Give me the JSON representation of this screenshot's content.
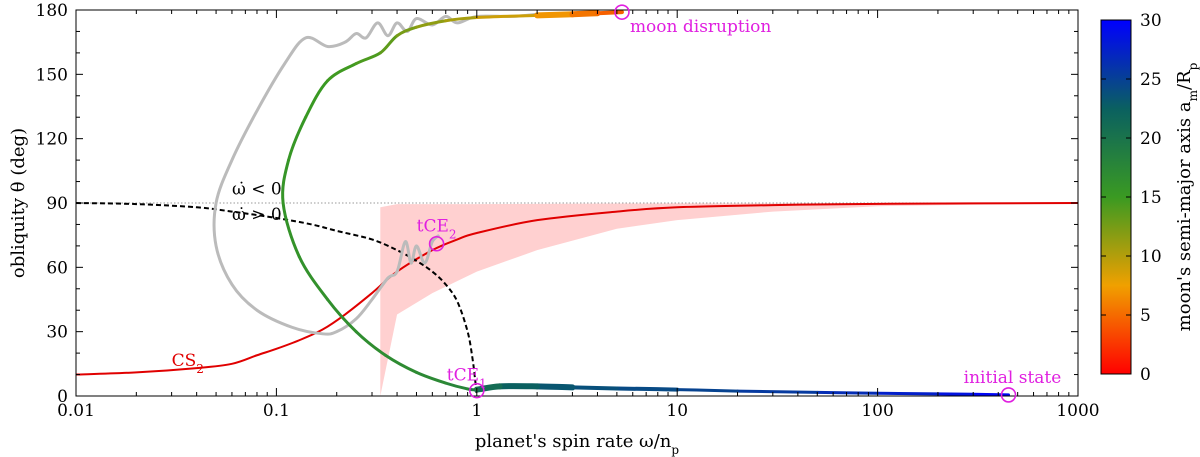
{
  "chart_data": {
    "type": "line",
    "xlabel": "planet's spin rate ω/n",
    "xlabel_sub": "p",
    "ylabel": "obliquity θ (deg)",
    "xscale": "log",
    "xlim": [
      0.01,
      1000
    ],
    "ylim": [
      0,
      180
    ],
    "xticks": [
      {
        "value": 0.01,
        "label": "0.01"
      },
      {
        "value": 0.1,
        "label": "0.1"
      },
      {
        "value": 1,
        "label": "1"
      },
      {
        "value": 10,
        "label": "10"
      },
      {
        "value": 100,
        "label": "100"
      },
      {
        "value": 1000,
        "label": "1000"
      }
    ],
    "yticks": [
      {
        "value": 0,
        "label": "0"
      },
      {
        "value": 30,
        "label": "30"
      },
      {
        "value": 60,
        "label": "60"
      },
      {
        "value": 90,
        "label": "90"
      },
      {
        "value": 120,
        "label": "120"
      },
      {
        "value": 150,
        "label": "150"
      },
      {
        "value": 180,
        "label": "180"
      }
    ],
    "colorbar": {
      "label": "moon's semi-major axis a",
      "label_sub1": "m",
      "label_mid": "/R",
      "label_sub2": "p",
      "range": [
        0,
        30
      ],
      "ticks": [
        {
          "value": 0,
          "label": "0"
        },
        {
          "value": 5,
          "label": "5"
        },
        {
          "value": 10,
          "label": "10"
        },
        {
          "value": 15,
          "label": "15"
        },
        {
          "value": 20,
          "label": "20"
        },
        {
          "value": 25,
          "label": "25"
        },
        {
          "value": 30,
          "label": "30"
        }
      ],
      "stops": [
        {
          "value": 0,
          "color": "#ff0000"
        },
        {
          "value": 7.5,
          "color": "#f0a000"
        },
        {
          "value": 15,
          "color": "#3a9a22"
        },
        {
          "value": 22.5,
          "color": "#0a6060"
        },
        {
          "value": 30,
          "color": "#0000ff"
        }
      ]
    },
    "series": [
      {
        "id": "cs2",
        "color": "#e00000",
        "label": "CS",
        "label_sub": "2",
        "points": [
          [
            0.01,
            10
          ],
          [
            0.02,
            11
          ],
          [
            0.04,
            13
          ],
          [
            0.06,
            15
          ],
          [
            0.08,
            19
          ],
          [
            0.1,
            22
          ],
          [
            0.13,
            26
          ],
          [
            0.17,
            31
          ],
          [
            0.22,
            38
          ],
          [
            0.3,
            48
          ],
          [
            0.4,
            58
          ],
          [
            0.6,
            68
          ],
          [
            0.8,
            73
          ],
          [
            1,
            76
          ],
          [
            2,
            82
          ],
          [
            5,
            86
          ],
          [
            10,
            88
          ],
          [
            30,
            89
          ],
          [
            100,
            89.6
          ],
          [
            1000,
            90
          ]
        ]
      },
      {
        "id": "separatrix",
        "color": "#000000",
        "dashed": true,
        "points": [
          [
            0.01,
            90
          ],
          [
            0.02,
            89.5
          ],
          [
            0.04,
            88
          ],
          [
            0.06,
            86
          ],
          [
            0.1,
            83
          ],
          [
            0.15,
            80
          ],
          [
            0.2,
            77
          ],
          [
            0.3,
            73
          ],
          [
            0.4,
            68
          ],
          [
            0.5,
            63
          ],
          [
            0.6,
            58
          ],
          [
            0.7,
            52
          ],
          [
            0.8,
            44
          ],
          [
            0.9,
            30
          ],
          [
            0.95,
            18
          ],
          [
            0.98,
            8
          ],
          [
            1,
            0
          ]
        ]
      },
      {
        "id": "trajectory-gray",
        "color": "#bbbbbb",
        "points": [
          [
            0.65,
            75
          ],
          [
            0.6,
            72
          ],
          [
            0.55,
            62
          ],
          [
            0.5,
            70
          ],
          [
            0.47,
            62
          ],
          [
            0.44,
            72
          ],
          [
            0.4,
            58
          ],
          [
            0.36,
            55
          ],
          [
            0.3,
            45
          ],
          [
            0.25,
            36
          ],
          [
            0.2,
            30
          ],
          [
            0.17,
            29
          ],
          [
            0.12,
            32
          ],
          [
            0.08,
            40
          ],
          [
            0.06,
            52
          ],
          [
            0.05,
            70
          ],
          [
            0.05,
            90
          ],
          [
            0.06,
            110
          ],
          [
            0.08,
            133
          ],
          [
            0.11,
            155
          ],
          [
            0.14,
            167
          ],
          [
            0.18,
            163
          ],
          [
            0.22,
            165
          ],
          [
            0.25,
            169
          ],
          [
            0.28,
            167
          ],
          [
            0.32,
            174
          ],
          [
            0.36,
            168
          ],
          [
            0.4,
            174
          ],
          [
            0.45,
            170
          ],
          [
            0.5,
            176
          ],
          [
            0.6,
            173
          ],
          [
            0.7,
            177
          ],
          [
            0.8,
            174
          ],
          [
            1,
            177
          ],
          [
            1.5,
            177
          ],
          [
            2,
            178
          ]
        ]
      },
      {
        "id": "trajectory-main",
        "colored_by": "colorbar",
        "points": [
          [
            450,
            0.5,
            30
          ],
          [
            300,
            0.8,
            29
          ],
          [
            200,
            1.0,
            28
          ],
          [
            100,
            1.3,
            27
          ],
          [
            50,
            1.7,
            26
          ],
          [
            20,
            2.3,
            25
          ],
          [
            10,
            3,
            24.5
          ],
          [
            5,
            3.5,
            24
          ],
          [
            3,
            4,
            23.5
          ],
          [
            2,
            4.5,
            23
          ],
          [
            1.3,
            4.5,
            22
          ],
          [
            1,
            3,
            20
          ],
          [
            0.9,
            3.3,
            18
          ],
          [
            0.7,
            6,
            17.5
          ],
          [
            0.5,
            11,
            17
          ],
          [
            0.35,
            19,
            16.8
          ],
          [
            0.25,
            30,
            16.5
          ],
          [
            0.18,
            45,
            16.3
          ],
          [
            0.13,
            65,
            16
          ],
          [
            0.108,
            90,
            15.8
          ],
          [
            0.115,
            110,
            15.6
          ],
          [
            0.14,
            130,
            15.3
          ],
          [
            0.18,
            147,
            15
          ],
          [
            0.25,
            155,
            14.5
          ],
          [
            0.33,
            160,
            14
          ],
          [
            0.4,
            168,
            13
          ],
          [
            0.5,
            172,
            12
          ],
          [
            0.7,
            175,
            11
          ],
          [
            1,
            176.5,
            10
          ],
          [
            2,
            177.5,
            8
          ],
          [
            3,
            178,
            6
          ],
          [
            4,
            178.5,
            5
          ],
          [
            5.3,
            179,
            4
          ]
        ]
      }
    ],
    "band": {
      "color": "#ffd0d0",
      "x_start": 0.33,
      "upper": [
        [
          0.33,
          88
        ],
        [
          0.4,
          89.5
        ],
        [
          1,
          89.5
        ],
        [
          10,
          89.8
        ],
        [
          1000,
          90
        ]
      ],
      "lower": [
        [
          0.33,
          0
        ],
        [
          0.4,
          38
        ],
        [
          0.6,
          48
        ],
        [
          1,
          58
        ],
        [
          2,
          68
        ],
        [
          5,
          78
        ],
        [
          10,
          82
        ],
        [
          30,
          86
        ],
        [
          100,
          88.5
        ],
        [
          1000,
          90
        ]
      ]
    },
    "hline": {
      "value": 90,
      "color": "#999999"
    },
    "annotations": [
      {
        "id": "moon-disruption",
        "text": "moon disruption",
        "color": "#e020e0",
        "x": 5.3,
        "y": 179,
        "marker": true
      },
      {
        "id": "initial-state",
        "text": "initial state",
        "color": "#e020e0",
        "x": 450,
        "y": 0.5,
        "marker": true
      },
      {
        "id": "tce2",
        "text": "tCE",
        "sub": "2",
        "color": "#e020e0",
        "x": 0.63,
        "y": 71,
        "marker": true
      },
      {
        "id": "tce1",
        "text": "tCE",
        "sub": "1",
        "color": "#e020e0",
        "x": 1,
        "y": 2.5,
        "marker": true
      },
      {
        "id": "omega-lt",
        "text": "ω̇ < 0",
        "color": "#000000",
        "x": 0.06,
        "y": 94
      },
      {
        "id": "omega-gt",
        "text": "ω̇ > 0",
        "color": "#000000",
        "x": 0.06,
        "y": 82
      },
      {
        "id": "cs2-label",
        "text": "CS",
        "sub": "2",
        "color": "#e00000",
        "x": 0.03,
        "y": 14
      }
    ]
  }
}
